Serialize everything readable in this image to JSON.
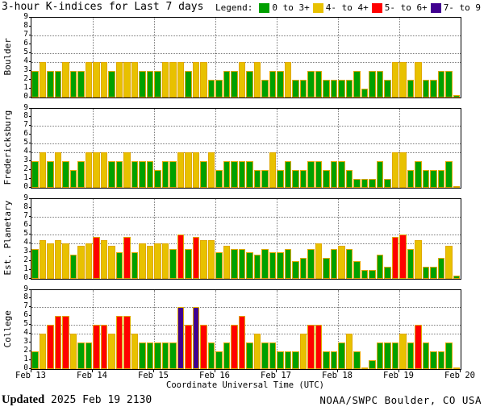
{
  "title": "3-hour K-indices for Last 7 days",
  "legend": {
    "label": "Legend:",
    "items": [
      {
        "label": "0 to 3+",
        "color": "#00a000"
      },
      {
        "label": "4- to 4+",
        "color": "#e8c100"
      },
      {
        "label": "5- to 6+",
        "color": "#ff0000"
      },
      {
        "label": "7- to 9",
        "color": "#400090"
      }
    ]
  },
  "footer": {
    "updated_label": "Updated",
    "updated_value": "2025 Feb 19 2130",
    "source": "NOAA/SWPC Boulder, CO USA"
  },
  "chart_data": {
    "type": "bar",
    "title": "3-hour K-indices for Last 7 days",
    "xlabel": "Coordinate Universal Time (UTC)",
    "x_tick_labels": [
      "Feb 13",
      "Feb 14",
      "Feb 15",
      "Feb 16",
      "Feb 17",
      "Feb 18",
      "Feb 19",
      "Feb 20"
    ],
    "ylim": [
      0,
      9
    ],
    "y_ticks": [
      0,
      1,
      2,
      3,
      4,
      5,
      6,
      7,
      8,
      9
    ],
    "h_gridlines": [
      4,
      5,
      7
    ],
    "bars_per_day": 8,
    "interval_hours": 3,
    "grid": true,
    "legend_position": "top-right",
    "color_scale": [
      {
        "range": "0 to 3+",
        "max": 3.5,
        "color": "#00a000"
      },
      {
        "range": "4- to 4+",
        "max": 4.5,
        "color": "#e8c100"
      },
      {
        "range": "5- to 6+",
        "max": 6.5,
        "color": "#ff0000"
      },
      {
        "range": "7- to 9",
        "max": 9.0,
        "color": "#400090"
      }
    ],
    "panels": [
      {
        "name": "Boulder",
        "values": [
          3,
          4,
          3,
          3,
          4,
          3,
          3,
          4,
          4,
          4,
          3,
          4,
          4,
          4,
          3,
          3,
          3,
          4,
          4,
          4,
          3,
          4,
          4,
          2,
          2,
          3,
          3,
          4,
          3,
          4,
          2,
          3,
          3,
          4,
          2,
          2,
          3,
          3,
          2,
          2,
          2,
          2,
          3,
          1,
          3,
          3,
          2,
          4,
          4,
          2,
          4,
          2,
          2,
          3,
          3,
          0.2
        ]
      },
      {
        "name": "Fredericksburg",
        "values": [
          3,
          4,
          3,
          4,
          3,
          2,
          3,
          4,
          4,
          4,
          3,
          3,
          4,
          3,
          3,
          3,
          2,
          3,
          3,
          4,
          4,
          4,
          3,
          4,
          2,
          3,
          3,
          3,
          3,
          2,
          2,
          4,
          2,
          3,
          2,
          2,
          3,
          3,
          2,
          3,
          3,
          2,
          1,
          1,
          1,
          3,
          1,
          4,
          4,
          2,
          3,
          2,
          2,
          2,
          3,
          0.2
        ]
      },
      {
        "name": "Est. Planetary",
        "values": [
          3.33,
          4.33,
          4,
          4.33,
          4,
          2.67,
          3.67,
          4,
          4.67,
          4.33,
          3.67,
          3,
          4.67,
          3,
          4,
          3.67,
          4,
          4,
          3.33,
          5,
          3.33,
          4.67,
          4.33,
          4.33,
          3,
          3.67,
          3.33,
          3.33,
          3,
          2.67,
          3.33,
          3,
          3,
          3.33,
          2,
          2.33,
          3.33,
          4,
          2.33,
          3.33,
          3.67,
          3.33,
          2,
          1,
          1,
          2.67,
          1.33,
          4.67,
          5,
          3.33,
          4.33,
          1.33,
          1.33,
          2.33,
          3.67,
          0.33
        ]
      },
      {
        "name": "College",
        "values": [
          2,
          4,
          5,
          6,
          6,
          4,
          3,
          3,
          5,
          5,
          4,
          6,
          6,
          4,
          3,
          3,
          3,
          3,
          3,
          7,
          5,
          7,
          5,
          3,
          2,
          3,
          5,
          6,
          3,
          4,
          3,
          3,
          2,
          2,
          2,
          4,
          5,
          5,
          2,
          2,
          3,
          4,
          2,
          0.2,
          1,
          3,
          3,
          3,
          4,
          3,
          5,
          3,
          2,
          2,
          3,
          0.2
        ]
      }
    ]
  }
}
